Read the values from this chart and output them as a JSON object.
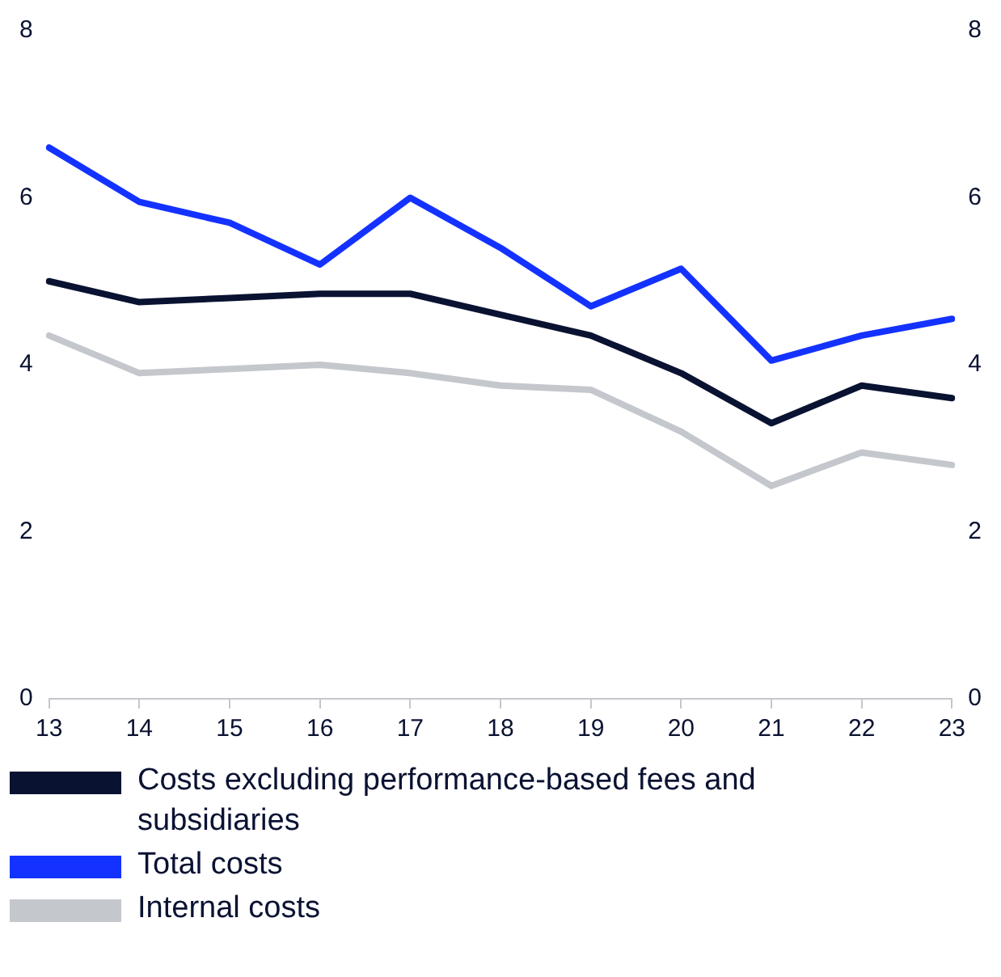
{
  "chart_data": {
    "type": "line",
    "categories": [
      "13",
      "14",
      "15",
      "16",
      "17",
      "18",
      "19",
      "20",
      "21",
      "22",
      "23"
    ],
    "series": [
      {
        "name": "Costs excluding performance-based fees and subsidiaries",
        "color": "#0a1232",
        "values": [
          5.0,
          4.75,
          4.8,
          4.85,
          4.85,
          4.6,
          4.35,
          3.9,
          3.3,
          3.75,
          3.6
        ]
      },
      {
        "name": "Total costs",
        "color": "#1432ff",
        "values": [
          6.6,
          5.95,
          5.7,
          5.2,
          6.0,
          5.4,
          4.7,
          5.15,
          4.05,
          4.35,
          4.55
        ]
      },
      {
        "name": "Internal costs",
        "color": "#c4c7cc",
        "values": [
          4.35,
          3.9,
          3.95,
          4.0,
          3.9,
          3.75,
          3.7,
          3.2,
          2.55,
          2.95,
          2.8
        ]
      }
    ],
    "ylim": [
      0,
      8
    ],
    "yticks": [
      0,
      2,
      4,
      6,
      8
    ],
    "y2lim": [
      0,
      8
    ],
    "y2ticks": [
      0,
      2,
      4,
      6,
      8
    ],
    "grid": false,
    "legend": "bottom",
    "marker": "none",
    "line_style": "solid"
  }
}
